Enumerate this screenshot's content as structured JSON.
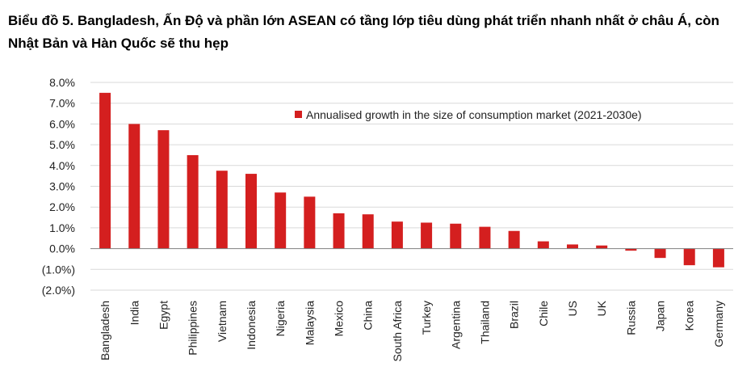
{
  "title": "Biểu đồ 5. Bangladesh, Ấn Độ và phần lớn ASEAN có tầng lớp tiêu dùng phát triển nhanh nhất ở châu Á, còn Nhật Bản và Hàn Quốc sẽ thu hẹp",
  "colors": {
    "bar": "#d41f1f",
    "grid": "#d9d9d9",
    "axis": "#7f7f7f"
  },
  "chart_data": {
    "type": "bar",
    "categories": [
      "Bangladesh",
      "India",
      "Egypt",
      "Philippines",
      "Vietnam",
      "Indonesia",
      "Nigeria",
      "Malaysia",
      "Mexico",
      "China",
      "South Africa",
      "Turkey",
      "Argentina",
      "Thailand",
      "Brazil",
      "Chile",
      "US",
      "UK",
      "Russia",
      "Japan",
      "Korea",
      "Germany"
    ],
    "series": [
      {
        "name": "Annualised growth in the size of consumption market (2021-2030e)",
        "values": [
          7.5,
          6.0,
          5.7,
          4.5,
          3.75,
          3.6,
          2.7,
          2.5,
          1.7,
          1.65,
          1.3,
          1.25,
          1.2,
          1.05,
          0.85,
          0.35,
          0.2,
          0.15,
          -0.1,
          -0.45,
          -0.8,
          -0.9
        ]
      }
    ],
    "yticks": [
      "8.0%",
      "7.0%",
      "6.0%",
      "5.0%",
      "4.0%",
      "3.0%",
      "2.0%",
      "1.0%",
      "0.0%",
      "(1.0%)",
      "(2.0%)"
    ],
    "ytick_values": [
      8,
      7,
      6,
      5,
      4,
      3,
      2,
      1,
      0,
      -1,
      -2
    ],
    "ylim": [
      -2,
      8
    ],
    "grid": true,
    "legend_position": "top-right"
  }
}
